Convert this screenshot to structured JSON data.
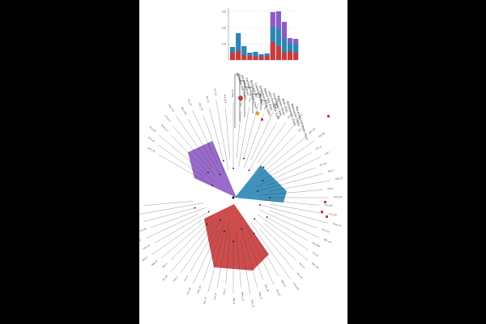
{
  "viewer": {
    "background": "#000000",
    "page_background": "#ffffff"
  },
  "colors": {
    "purple": "#8e5bc4",
    "blue": "#2a86b5",
    "red": "#c83a3a",
    "black": "#111111",
    "orange": "#e6a23c",
    "light_blue": "#7fb3d8"
  },
  "bar_chart": {
    "type": "stacked-bar",
    "y_ticks": [
      "3.0",
      "2.0",
      "1.0"
    ],
    "series": [
      {
        "color_key": "red",
        "values": [
          0.45,
          0.55,
          0.3,
          0.25,
          0.25,
          0.2,
          0.25,
          1.1,
          0.85,
          0.45,
          0.55,
          0.45
        ]
      },
      {
        "color_key": "blue",
        "values": [
          0.35,
          1.1,
          0.55,
          0.2,
          0.25,
          0.15,
          0.15,
          0.95,
          1.1,
          0.85,
          0.5,
          0.55
        ]
      },
      {
        "color_key": "purple",
        "values": [
          0.0,
          0.0,
          0.0,
          0.0,
          0.0,
          0.0,
          0.0,
          0.9,
          1.05,
          1.05,
          0.3,
          0.3
        ]
      }
    ]
  },
  "taxonomy_legend": [
    "Agnathan fish (Lam)",
    "Ancestral (Ana)",
    "Cartilaginous fish (Cho)",
    "Bony fish (Pl)",
    "Coelacanth (Lac)",
    "Amphibian fishes (Dan)",
    "Teleost fish (Dre)",
    "Lobe-finned fish (Lat)",
    "Amphibians (Xtr)",
    "Reptiles (Acar)",
    "Birds (Gal)",
    "Monotremes (Oan)",
    "Marsupials (Mdo)",
    "Placental mammals (Hsa)"
  ],
  "tree_tips": [
    "Lam_X1",
    "Cmi_A2",
    "Cmi_A5",
    "Pma_3.1",
    "Lch_2.2",
    "Dre_xs1",
    "Ola_hh9",
    "Tru_k2",
    "Gac_m4",
    "Xtr_rr1",
    "Xtr_rr4",
    "Aca_p12",
    "Gga_b1",
    "Tgu_b3",
    "Oan_c8",
    "Mdo_9",
    "Hsa_n3",
    "Mmu_n5",
    "Bta_4",
    "Cfa_2",
    "Eca_6",
    "Ssc_71",
    "Lam_X4",
    "Cmi_B1",
    "Lch_q",
    "Dre_v",
    "Xtr_a6",
    "Aca_z",
    "Gga_j2",
    "Hsa_k"
  ]
}
